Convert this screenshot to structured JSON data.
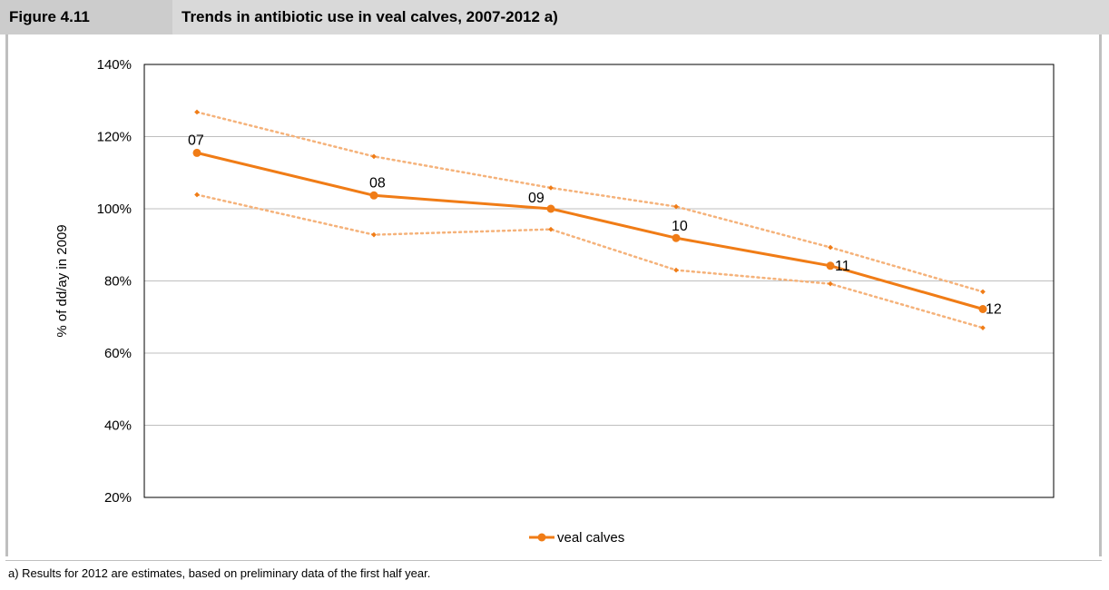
{
  "header": {
    "figure_number": "Figure 4.11",
    "title": "Trends in antibiotic use in veal calves, 2007-2012 a)"
  },
  "footnote": "a) Results for 2012 are estimates, based on preliminary data of the first half year.",
  "colors": {
    "series": "#f07c16",
    "bounds": "#f5b27a",
    "grid": "#bfbfbf"
  },
  "chart_data": {
    "type": "line",
    "title": "",
    "xlabel": "",
    "ylabel": "% of  dd/ay in 2009",
    "ylim": [
      20,
      140
    ],
    "yticks": [
      "20%",
      "40%",
      "60%",
      "80%",
      "100%",
      "120%",
      "140%"
    ],
    "grid": true,
    "legend_position": "bottom",
    "x": [
      "07",
      "08",
      "09",
      "10",
      "11",
      "12"
    ],
    "series": [
      {
        "name": "veal calves",
        "values": [
          115.5,
          103.7,
          100,
          91.9,
          84.2,
          72.2
        ],
        "labels": [
          "07",
          "08",
          "09",
          "10",
          "11",
          "12"
        ]
      }
    ],
    "bounds": {
      "upper": [
        126.8,
        114.5,
        105.8,
        100.6,
        89.3,
        77.0
      ],
      "lower": [
        103.9,
        92.8,
        94.3,
        83.0,
        79.2,
        67.0
      ]
    }
  }
}
